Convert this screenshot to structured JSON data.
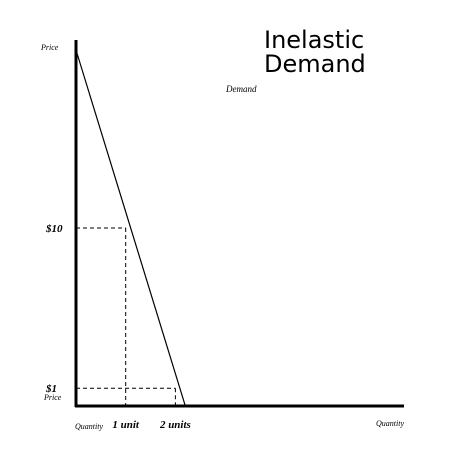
{
  "chart_data": {
    "type": "line",
    "title_lines": [
      "Inelastic",
      "Demand"
    ],
    "series": [
      {
        "name": "Demand",
        "x": [
          0,
          2.2
        ],
        "y": [
          20,
          0
        ]
      }
    ],
    "reference_points": [
      {
        "x": 1,
        "y": 10
      },
      {
        "x": 2,
        "y": 1
      }
    ],
    "x_ticks": [
      {
        "value": 1,
        "label": "1 unit"
      },
      {
        "value": 2,
        "label": "2 units"
      }
    ],
    "y_ticks": [
      {
        "value": 10,
        "label": "$10"
      },
      {
        "value": 1,
        "label": "$1"
      }
    ],
    "ylabel_top": "Price",
    "ylabel_bottom": "Price",
    "xlabel_left": "Quantity",
    "xlabel_right": "Quantity",
    "xlim": [
      0,
      6.6
    ],
    "ylim": [
      0,
      20
    ],
    "grid": false,
    "colors": {
      "line": "#000000",
      "background": "#ffffff"
    }
  }
}
